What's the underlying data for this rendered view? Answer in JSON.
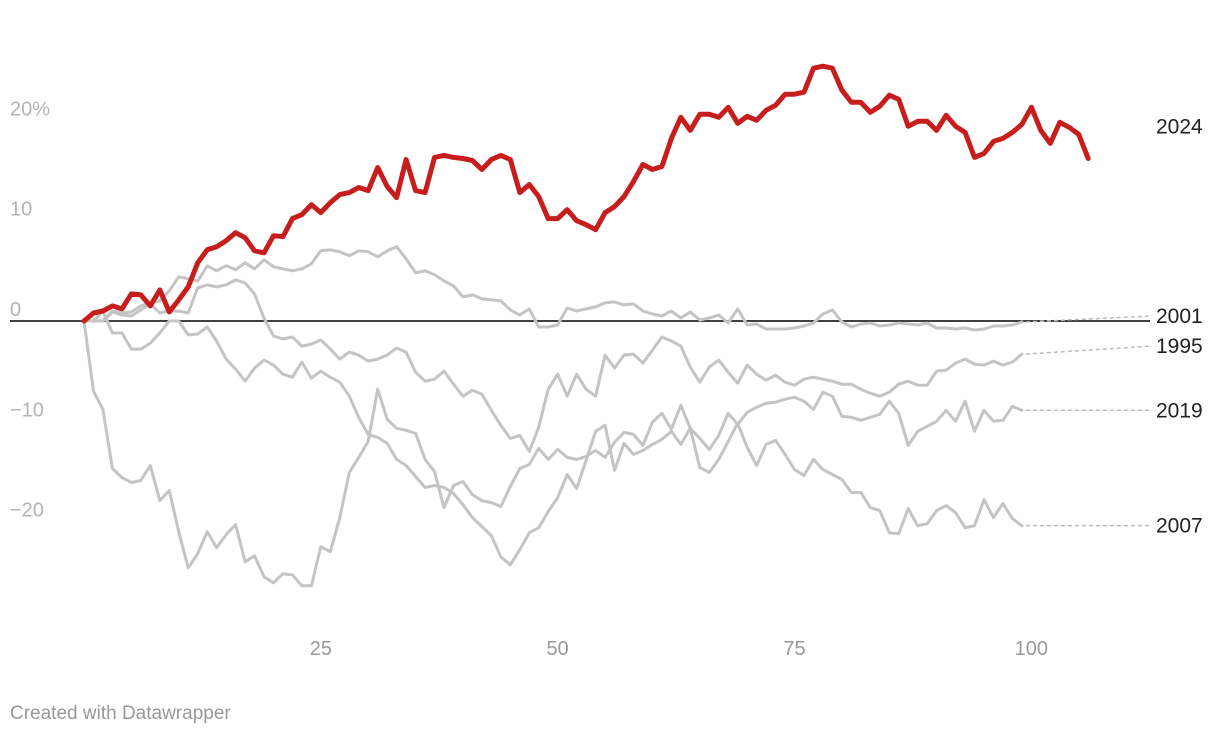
{
  "chart_data": {
    "type": "line",
    "title": "",
    "xlabel": "",
    "ylabel": "",
    "xlim": [
      0,
      114
    ],
    "ylim": [
      -31,
      30
    ],
    "y_ticks": [
      20,
      10,
      0,
      -10,
      -20
    ],
    "y_tick_labels": [
      "20%",
      "10",
      "0",
      "−10",
      "−20"
    ],
    "x_ticks": [
      25,
      50,
      75,
      100
    ],
    "x_tick_labels": [
      "25",
      "50",
      "75",
      "100"
    ],
    "zero_line": true,
    "grid": false,
    "colors": {
      "highlight": "#c71e1d",
      "other": "#c4c4c4",
      "zero": "#000000",
      "leader": "#bbbbbb"
    },
    "series": [
      {
        "name": "2024",
        "highlight": true,
        "label_y": 19.4,
        "x": [
          0,
          1,
          2,
          3,
          4,
          5,
          6,
          7,
          8,
          9,
          10,
          11,
          12,
          13,
          14,
          15,
          16,
          17,
          18,
          19,
          20,
          21,
          22,
          23,
          24,
          25,
          26,
          27,
          28,
          29,
          30,
          31,
          32,
          33,
          34,
          35,
          36,
          37,
          38,
          39,
          40,
          41,
          42,
          43,
          44,
          45,
          46,
          47,
          48,
          49,
          50,
          51,
          52,
          53,
          54,
          55,
          56,
          57,
          58,
          59,
          60,
          61,
          62,
          63,
          64,
          65,
          66,
          67,
          68,
          69,
          70,
          71,
          72,
          73,
          74,
          75,
          76,
          77,
          78,
          79,
          80,
          81,
          82,
          83,
          84,
          85,
          86,
          87,
          88,
          89,
          90,
          91,
          92,
          93,
          94,
          95,
          96,
          97,
          98,
          99,
          100,
          101,
          102,
          103,
          104,
          105,
          106
        ],
        "y": [
          0,
          0.8,
          1,
          1.5,
          1.2,
          2.7,
          2.6,
          1.5,
          3.1,
          0.9,
          2.1,
          3.4,
          5.8,
          7.1,
          7.4,
          8.0,
          8.8,
          8.3,
          7.0,
          6.8,
          8.5,
          8.4,
          10.2,
          10.6,
          11.6,
          10.8,
          11.8,
          12.6,
          12.8,
          13.3,
          13.0,
          15.3,
          13.4,
          12.3,
          16.1,
          13.0,
          12.8,
          16.3,
          16.5,
          16.3,
          16.2,
          16.0,
          15.1,
          16.1,
          16.5,
          16.1,
          12.8,
          13.6,
          12.4,
          10.2,
          10.2,
          11.1,
          10.0,
          9.6,
          9.1,
          10.8,
          11.4,
          12.4,
          13.9,
          15.6,
          15.1,
          15.4,
          18.2,
          20.3,
          19.0,
          20.6,
          20.6,
          20.3,
          21.3,
          19.7,
          20.4,
          20.0,
          21.0,
          21.5,
          22.6,
          22.6,
          22.8,
          25.2,
          25.4,
          25.2,
          23.0,
          21.8,
          21.8,
          20.8,
          21.4,
          22.5,
          22.1,
          19.4,
          19.9,
          19.9,
          19.0,
          20.5,
          19.4,
          18.8,
          16.3,
          16.7,
          17.9,
          18.2,
          18.8,
          19.6,
          21.3,
          19.0,
          17.7,
          19.8,
          19.3,
          18.6,
          16.2
        ]
      },
      {
        "name": "2001",
        "label_y": 0.5,
        "x": [
          0,
          1,
          2,
          3,
          4,
          5,
          6,
          7,
          8,
          9,
          10,
          11,
          12,
          13,
          14,
          15,
          16,
          17,
          18,
          19,
          20,
          21,
          22,
          23,
          24,
          25,
          26,
          27,
          28,
          29,
          30,
          31,
          32,
          33,
          34,
          35,
          36,
          37,
          38,
          39,
          40,
          41,
          42,
          43,
          44,
          45,
          46,
          47,
          48,
          49,
          50,
          51,
          52,
          53,
          54,
          55,
          56,
          57,
          58,
          59,
          60,
          61,
          62,
          63,
          64,
          65,
          66,
          67,
          68,
          69,
          70,
          71,
          72,
          73,
          74,
          75,
          76,
          77,
          78,
          79,
          80,
          81,
          82,
          83,
          84,
          85,
          86,
          87,
          88,
          89,
          90,
          91,
          92,
          93,
          94,
          95,
          96,
          97,
          98,
          99
        ],
        "y": [
          0,
          0,
          0,
          1,
          0.8,
          0.9,
          1.5,
          1.8,
          2.0,
          3.0,
          4.4,
          4.2,
          4.0,
          5.5,
          5.0,
          5.5,
          5.1,
          5.8,
          5.2,
          6.1,
          5.4,
          5.2,
          5.0,
          5.2,
          5.7,
          7.0,
          7.1,
          6.9,
          6.5,
          7.0,
          6.9,
          6.4,
          7.0,
          7.4,
          6.2,
          4.8,
          5.0,
          4.6,
          4.0,
          3.5,
          2.4,
          2.6,
          2.2,
          2.1,
          2.0,
          1.1,
          0.6,
          1.2,
          -0.6,
          -0.6,
          -0.4,
          1.3,
          1.0,
          1.2,
          1.4,
          1.8,
          1.9,
          1.6,
          1.7,
          1.0,
          0.7,
          0.5,
          1.0,
          0.3,
          0.9,
          0.1,
          0.3,
          0.6,
          -0.2,
          1.2,
          -0.4,
          -0.3,
          -0.8,
          -0.8,
          -0.8,
          -0.7,
          -0.5,
          -0.2,
          0.7,
          1.1,
          -0.1,
          -0.6,
          -0.3,
          -0.2,
          -0.5,
          -0.4,
          -0.2,
          -0.3,
          -0.4,
          -0.2,
          -0.7,
          -0.7,
          -0.8,
          -0.7,
          -0.9,
          -0.8,
          -0.5,
          -0.5,
          -0.4,
          -0.1
        ]
      },
      {
        "name": "1995",
        "label_y": -2.5,
        "x": [
          0,
          1,
          2,
          3,
          4,
          5,
          6,
          7,
          8,
          9,
          10,
          11,
          12,
          13,
          14,
          15,
          16,
          17,
          18,
          19,
          20,
          21,
          22,
          23,
          24,
          25,
          26,
          27,
          28,
          29,
          30,
          31,
          32,
          33,
          34,
          35,
          36,
          37,
          38,
          39,
          40,
          41,
          42,
          43,
          44,
          45,
          46,
          47,
          48,
          49,
          50,
          51,
          52,
          53,
          54,
          55,
          56,
          57,
          58,
          59,
          60,
          61,
          62,
          63,
          64,
          65,
          66,
          67,
          68,
          69,
          70,
          71,
          72,
          73,
          74,
          75,
          76,
          77,
          78,
          79,
          80,
          81,
          82,
          83,
          84,
          85,
          86,
          87,
          88,
          89,
          90,
          91,
          92,
          93,
          94,
          95,
          96,
          97,
          98,
          99
        ],
        "y": [
          0,
          0,
          0,
          0.9,
          0.6,
          0.5,
          1.1,
          1.7,
          0.8,
          1.0,
          1.0,
          0.8,
          3.3,
          3.6,
          3.4,
          3.6,
          4.1,
          3.8,
          2.7,
          0.3,
          -1.5,
          -1.8,
          -1.6,
          -2.5,
          -2.3,
          -1.9,
          -2.8,
          -3.8,
          -3.1,
          -3.4,
          -4.0,
          -3.8,
          -3.4,
          -2.7,
          -3.1,
          -5.1,
          -6.0,
          -5.8,
          -5.0,
          -6.3,
          -7.5,
          -6.9,
          -7.3,
          -8.9,
          -10.4,
          -11.7,
          -11.4,
          -13.0,
          -10.6,
          -6.8,
          -5.3,
          -7.5,
          -5.3,
          -6.8,
          -7.5,
          -3.4,
          -4.7,
          -3.4,
          -3.3,
          -4.2,
          -2.9,
          -1.6,
          -2.0,
          -2.5,
          -4.6,
          -6.1,
          -4.6,
          -3.9,
          -5.1,
          -6.2,
          -4.4,
          -5.3,
          -5.9,
          -5.4,
          -6.1,
          -6.4,
          -5.8,
          -5.6,
          -5.8,
          -6.0,
          -6.3,
          -6.3,
          -6.8,
          -7.2,
          -7.5,
          -7.1,
          -6.3,
          -6.0,
          -6.4,
          -6.4,
          -5.0,
          -4.9,
          -4.2,
          -3.8,
          -4.3,
          -4.4,
          -4.0,
          -4.4,
          -4.1,
          -3.3
        ]
      },
      {
        "name": "2019",
        "label_y": -8.9,
        "x": [
          0,
          1,
          2,
          3,
          4,
          5,
          6,
          7,
          8,
          9,
          10,
          11,
          12,
          13,
          14,
          15,
          16,
          17,
          18,
          19,
          20,
          21,
          22,
          23,
          24,
          25,
          26,
          27,
          28,
          29,
          30,
          31,
          32,
          33,
          34,
          35,
          36,
          37,
          38,
          39,
          40,
          41,
          42,
          43,
          44,
          45,
          46,
          47,
          48,
          49,
          50,
          51,
          52,
          53,
          54,
          55,
          56,
          57,
          58,
          59,
          60,
          61,
          62,
          63,
          64,
          65,
          66,
          67,
          68,
          69,
          70,
          71,
          72,
          73,
          74,
          75,
          76,
          77,
          78,
          79,
          80,
          81,
          82,
          83,
          84,
          85,
          86,
          87,
          88,
          89,
          90,
          91,
          92,
          93,
          94,
          95,
          96,
          97,
          98,
          99
        ],
        "y": [
          0,
          0,
          1,
          -1.2,
          -1.2,
          -2.8,
          -2.8,
          -2.2,
          -1.2,
          0,
          0,
          -1.4,
          -1.3,
          -0.6,
          -2.0,
          -3.8,
          -4.8,
          -6.0,
          -4.7,
          -3.9,
          -4.4,
          -5.3,
          -5.6,
          -4.1,
          -5.7,
          -5.0,
          -5.6,
          -6.1,
          -7.5,
          -9.6,
          -11.3,
          -11.6,
          -12.2,
          -13.8,
          -14.4,
          -15.5,
          -16.6,
          -16.4,
          -16.6,
          -17.2,
          -18.3,
          -19.6,
          -20.5,
          -21.4,
          -23.5,
          -24.3,
          -22.8,
          -21.1,
          -20.6,
          -19.0,
          -17.6,
          -15.3,
          -16.7,
          -13.9,
          -11.0,
          -10.4,
          -14.9,
          -12.2,
          -13.3,
          -12.9,
          -12.3,
          -11.8,
          -11.0,
          -12.3,
          -10.7,
          -11.7,
          -12.8,
          -11.4,
          -9.2,
          -10.3,
          -9.1,
          -8.6,
          -8.2,
          -8.1,
          -7.8,
          -7.6,
          -8.0,
          -8.8,
          -7.1,
          -7.5,
          -9.5,
          -9.6,
          -9.9,
          -9.6,
          -9.3,
          -8.0,
          -9.2,
          -12.4,
          -11.0,
          -10.5,
          -10.0,
          -8.9,
          -10.0,
          -8.0,
          -11.0,
          -8.9,
          -10.0,
          -9.9,
          -8.5,
          -8.9
        ]
      },
      {
        "name": "2007",
        "label_y": -20.4,
        "x": [
          0,
          1,
          2,
          3,
          4,
          5,
          6,
          7,
          8,
          9,
          10,
          11,
          12,
          13,
          14,
          15,
          16,
          17,
          18,
          19,
          20,
          21,
          22,
          23,
          24,
          25,
          26,
          27,
          28,
          29,
          30,
          31,
          32,
          33,
          34,
          35,
          36,
          37,
          38,
          39,
          40,
          41,
          42,
          43,
          44,
          45,
          46,
          47,
          48,
          49,
          50,
          51,
          52,
          53,
          54,
          55,
          56,
          57,
          58,
          59,
          60,
          61,
          62,
          63,
          64,
          65,
          66,
          67,
          68,
          69,
          70,
          71,
          72,
          73,
          74,
          75,
          76,
          77,
          78,
          79,
          80,
          81,
          82,
          83,
          84,
          85,
          86,
          87,
          88,
          89,
          90,
          91,
          92,
          93,
          94,
          95,
          96,
          97,
          98,
          99
        ],
        "y": [
          0,
          -7,
          -8.8,
          -14.7,
          -15.6,
          -16.1,
          -15.9,
          -14.4,
          -17.9,
          -16.9,
          -21.0,
          -24.6,
          -23.2,
          -21.0,
          -22.6,
          -21.3,
          -20.3,
          -24.0,
          -23.4,
          -25.5,
          -26.1,
          -25.2,
          -25.3,
          -26.4,
          -26.4,
          -22.5,
          -23.0,
          -19.6,
          -15.1,
          -13.6,
          -12.0,
          -6.8,
          -9.8,
          -10.7,
          -10.9,
          -11.2,
          -13.8,
          -15.0,
          -18.6,
          -16.4,
          -16.0,
          -17.3,
          -17.9,
          -18.1,
          -18.5,
          -16.5,
          -14.7,
          -14.3,
          -12.7,
          -13.8,
          -12.8,
          -13.6,
          -13.8,
          -13.5,
          -12.9,
          -13.6,
          -12.1,
          -11.1,
          -11.3,
          -12.4,
          -10.1,
          -9.2,
          -10.8,
          -8.4,
          -10.7,
          -14.6,
          -15.1,
          -13.8,
          -12.0,
          -10.2,
          -12.6,
          -14.4,
          -12.3,
          -11.9,
          -13.3,
          -14.8,
          -15.4,
          -13.8,
          -14.8,
          -15.3,
          -15.8,
          -17.1,
          -17.1,
          -18.6,
          -18.9,
          -21.1,
          -21.2,
          -18.7,
          -20.4,
          -20.2,
          -18.9,
          -18.4,
          -19.1,
          -20.6,
          -20.4,
          -17.8,
          -19.6,
          -18.2,
          -19.7,
          -20.4
        ]
      }
    ]
  },
  "footer": {
    "credit": "Created with Datawrapper"
  }
}
